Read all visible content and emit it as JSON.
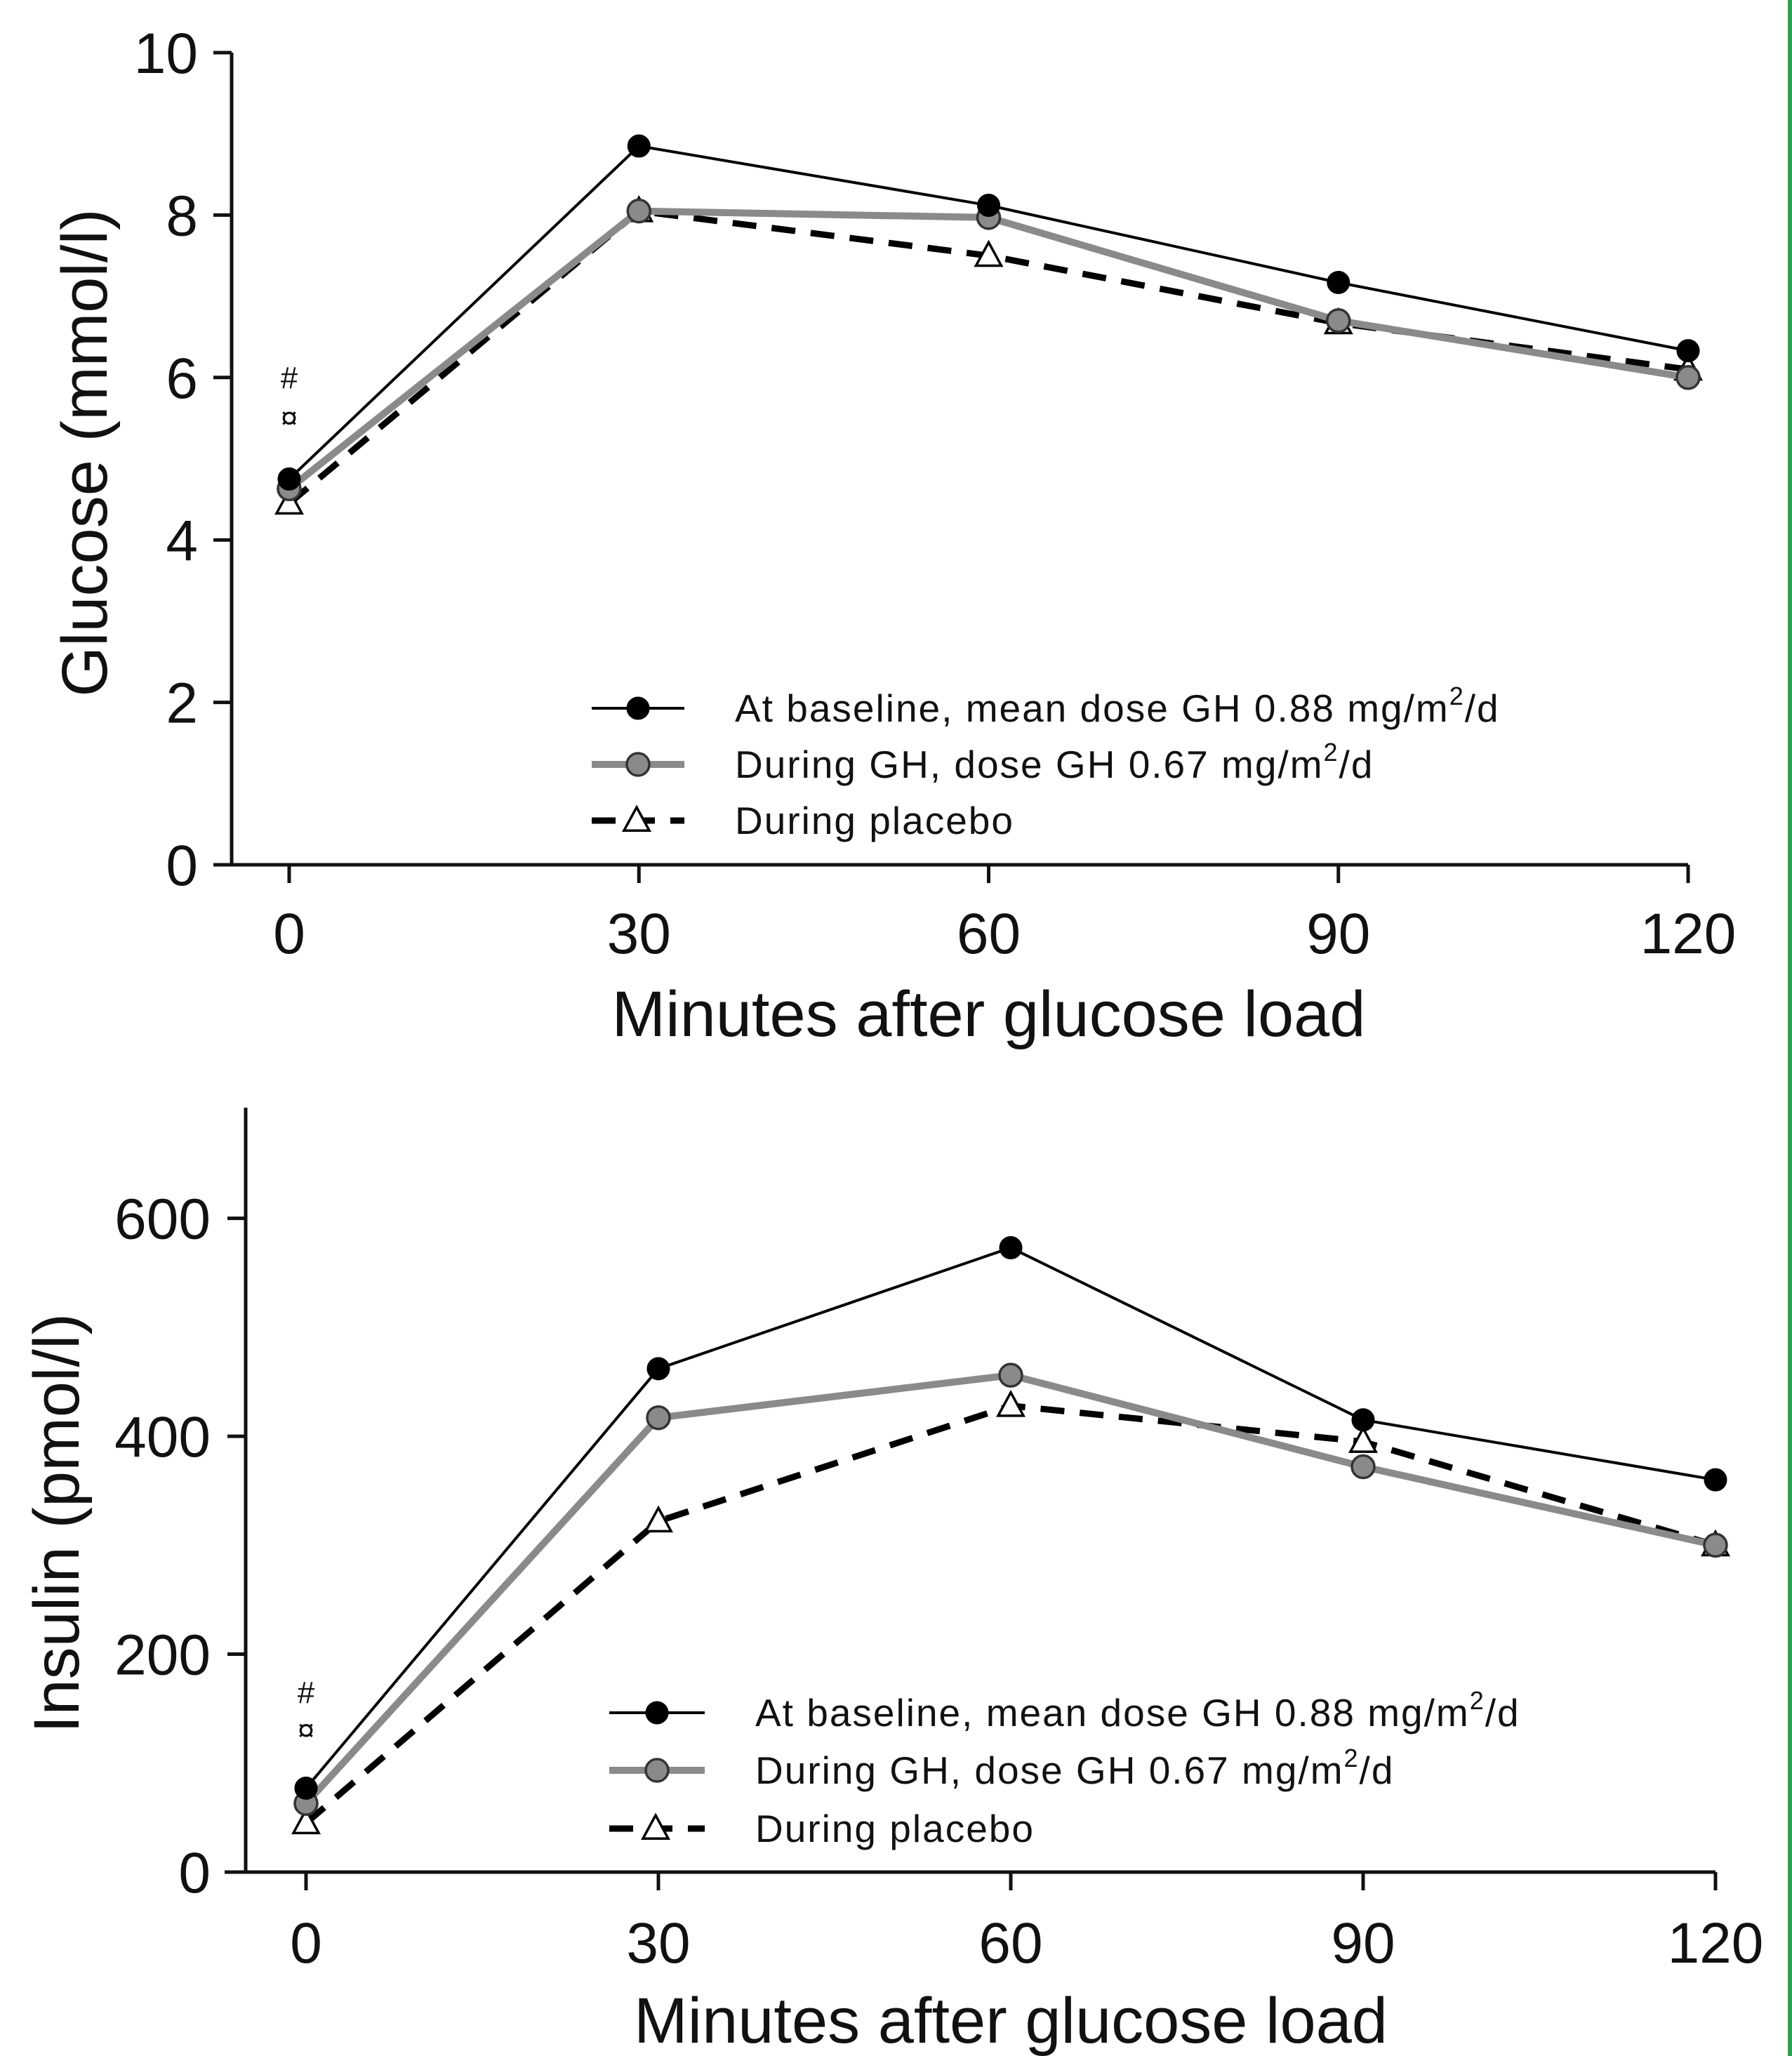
{
  "colors": {
    "baseline": "#000000",
    "gh": "#8a8a8a",
    "placebo": "#000000",
    "border_accent": "#2e9e4f"
  },
  "chart_data": [
    {
      "type": "line",
      "xlabel": "Minutes after glucose load",
      "ylabel": "Glucose (mmol/l)",
      "xlim": [
        0,
        120
      ],
      "ylim": [
        0,
        10
      ],
      "x_ticks": [
        0,
        30,
        60,
        90,
        120
      ],
      "y_ticks": [
        0,
        2,
        4,
        6,
        8,
        10
      ],
      "grid": false,
      "legend_position": "bottom-right",
      "x": [
        0,
        30,
        60,
        90,
        120
      ],
      "series": [
        {
          "name": "At baseline, mean dose GH 0.88 mg/m²/d",
          "values": [
            4.75,
            8.85,
            8.12,
            7.17,
            6.33
          ],
          "color": "#000000",
          "marker": "filled-circle",
          "line": "solid-thin"
        },
        {
          "name": "During GH, dose GH 0.67 mg/m²/d",
          "values": [
            4.63,
            8.05,
            7.97,
            6.7,
            6.0
          ],
          "color": "#8a8a8a",
          "marker": "gray-circle",
          "line": "solid-thick"
        },
        {
          "name": "During placebo",
          "values": [
            4.45,
            8.05,
            7.5,
            6.67,
            6.1
          ],
          "color": "#000000",
          "marker": "open-triangle",
          "line": "dashed"
        }
      ],
      "annotations": [
        {
          "text": "#",
          "x": 0,
          "y": 6.0
        },
        {
          "text": "¤",
          "x": 0,
          "y": 5.5
        }
      ]
    },
    {
      "type": "line",
      "xlabel": "Minutes after glucose load",
      "ylabel": "Insulin (pmol/l)",
      "xlim": [
        0,
        120
      ],
      "ylim": [
        0,
        650
      ],
      "x_ticks": [
        0,
        30,
        60,
        90,
        120
      ],
      "y_ticks": [
        0,
        200,
        400,
        600
      ],
      "grid": false,
      "legend_position": "bottom-right",
      "x": [
        0,
        30,
        60,
        90,
        120
      ],
      "series": [
        {
          "name": "At baseline, mean dose GH 0.88 mg/m²/d",
          "values": [
            77,
            462,
            573,
            415,
            360
          ],
          "color": "#000000",
          "marker": "filled-circle",
          "line": "solid-thin"
        },
        {
          "name": "During GH, dose GH 0.67 mg/m²/d",
          "values": [
            63,
            417,
            456,
            372,
            300
          ],
          "color": "#8a8a8a",
          "marker": "gray-circle",
          "line": "solid-thick"
        },
        {
          "name": "During placebo",
          "values": [
            45,
            322,
            428,
            395,
            300
          ],
          "color": "#000000",
          "marker": "open-triangle",
          "line": "dashed"
        }
      ],
      "annotations": [
        {
          "text": "#",
          "x": 0,
          "y": 165
        },
        {
          "text": "¤",
          "x": 0,
          "y": 130
        }
      ]
    }
  ]
}
